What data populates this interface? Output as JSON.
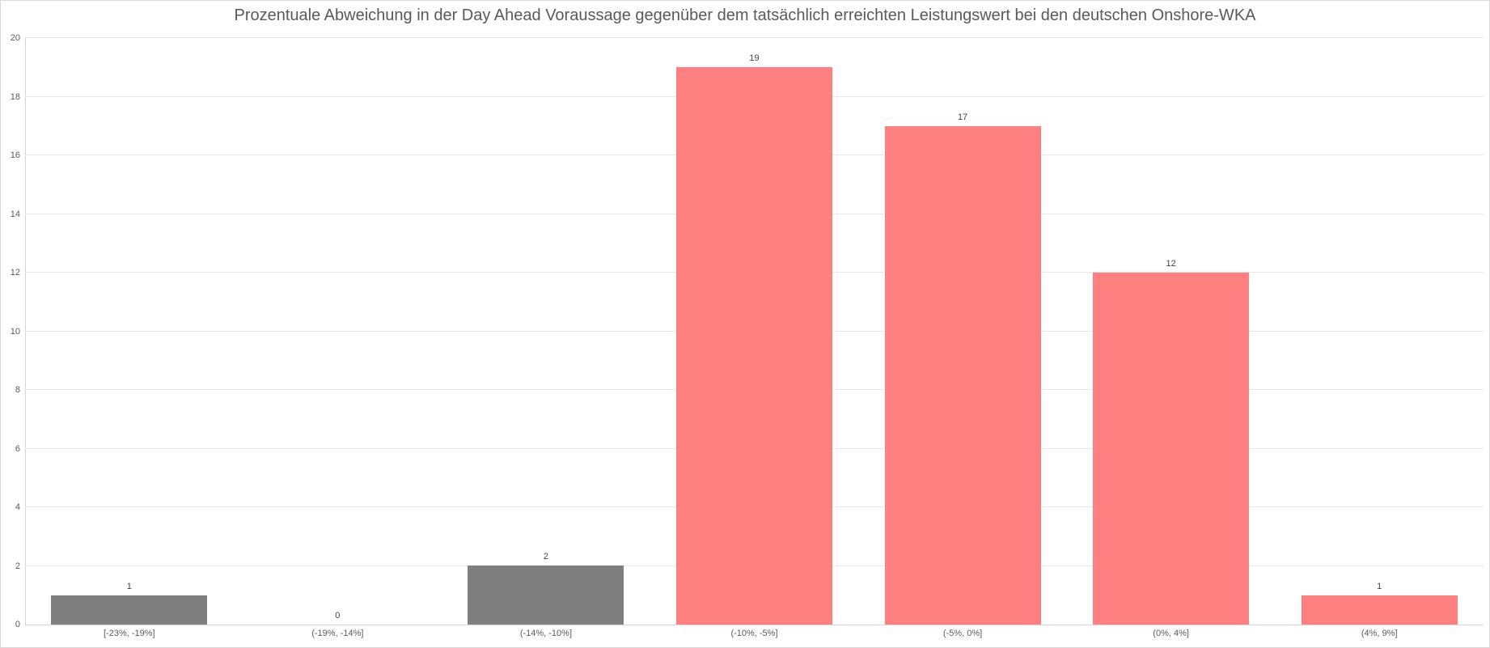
{
  "chart_data": {
    "type": "bar",
    "title": "Prozentuale Abweichung in der Day Ahead Voraussage gegenüber dem tatsächlich erreichten Leistungswert bei den deutschen Onshore-WKA",
    "categories": [
      "[-23%, -19%]",
      "(-19%, -14%]",
      "(-14%, -10%]",
      "(-10%, -5%]",
      "(-5%, 0%]",
      "(0%, 4%]",
      "(4%, 9%]"
    ],
    "values": [
      1,
      0,
      2,
      19,
      17,
      12,
      1
    ],
    "data_labels": [
      "1",
      "0",
      "2",
      "19",
      "17",
      "12",
      "1"
    ],
    "bar_colors": [
      "#7f7f7f",
      "#7f7f7f",
      "#7f7f7f",
      "#fd7f7f",
      "#fd7f7f",
      "#fd7f7f",
      "#fd7f7f"
    ],
    "xlabel": "",
    "ylabel": "",
    "ylim": [
      0,
      20
    ],
    "yticks": [
      0,
      2,
      4,
      6,
      8,
      10,
      12,
      14,
      16,
      18,
      20
    ],
    "grid": "horizontal",
    "legend": "none",
    "colors": {
      "gray_bar": "#7f7f7f",
      "red_bar": "#fd7f7f",
      "grid_line": "#e8e8e8",
      "axis_line": "#d4d4d4",
      "tick_text": "#595959",
      "title_text": "#595959",
      "value_text": "#3f3f3f",
      "border": "#d9d9d9",
      "background": "#ffffff"
    }
  }
}
